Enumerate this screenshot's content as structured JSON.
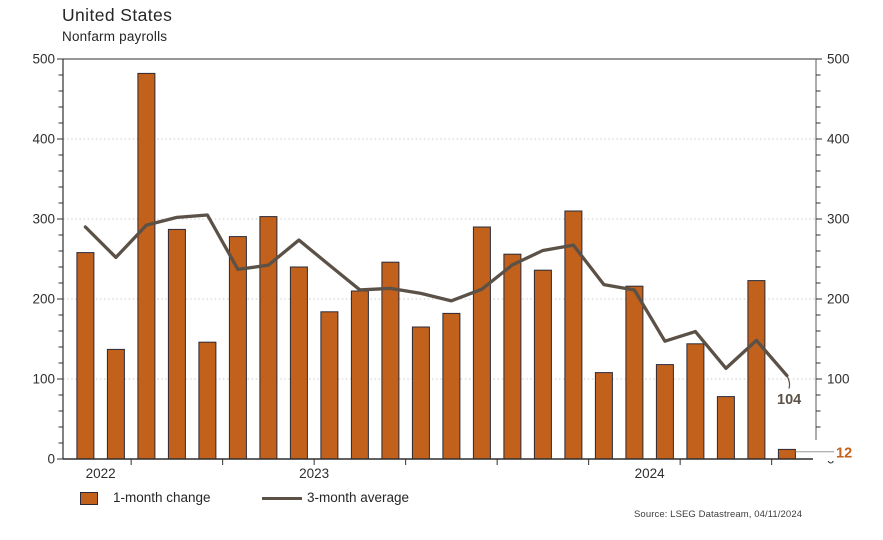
{
  "header": {
    "title": "United States",
    "subtitle": "Nonfarm payrolls"
  },
  "legend": {
    "bar_label": "1-month change",
    "line_label": "3-month average"
  },
  "source_note": "Source: LSEG Datastream, 04/11/2024",
  "colors": {
    "bar": "#C1611B",
    "bar_border": "#2A2A38",
    "line": "#5B5147",
    "grid": "#CBCBCB",
    "frame_dark": "#2F2F2F",
    "frame_light": "#757575",
    "text": "#2E2E2E",
    "leader": "#999999",
    "annotation_bg": "#FFFFFF"
  },
  "chart_data": {
    "type": "bar",
    "title": "United States",
    "subtitle": "Nonfarm payrolls",
    "x": [
      "2022-11",
      "2022-12",
      "2023-01",
      "2023-02",
      "2023-03",
      "2023-04",
      "2023-05",
      "2023-06",
      "2023-07",
      "2023-08",
      "2023-09",
      "2023-10",
      "2023-11",
      "2023-12",
      "2024-01",
      "2024-02",
      "2024-03",
      "2024-04",
      "2024-05",
      "2024-06",
      "2024-07",
      "2024-08",
      "2024-09",
      "2024-10"
    ],
    "series": [
      {
        "name": "1-month change",
        "type": "bar",
        "color": "#C1611B",
        "values": [
          258,
          137,
          482,
          287,
          146,
          278,
          303,
          240,
          184,
          210,
          246,
          165,
          182,
          290,
          256,
          236,
          310,
          108,
          216,
          118,
          144,
          78,
          223,
          12
        ]
      },
      {
        "name": "3-month average",
        "type": "line",
        "color": "#5B5147",
        "values": [
          290,
          252,
          292.3,
          302,
          305,
          237,
          242.3,
          273.7,
          242.3,
          211.3,
          213.3,
          207,
          197.7,
          212.3,
          242.7,
          260.7,
          267.3,
          218,
          211.3,
          147.3,
          159.3,
          113.3,
          148.3,
          104.3
        ]
      }
    ],
    "ylim": [
      0,
      500
    ],
    "y_ticks": [
      0,
      100,
      200,
      300,
      400,
      500
    ],
    "y_minor_step": 20,
    "dual_y_axis": true,
    "grid": "horizontal-dotted",
    "x_tick_interval": "quarterly",
    "year_labels": [
      "2022",
      "2023",
      "2024"
    ],
    "legend_position": "bottom-left",
    "annotations": [
      {
        "series": "line",
        "text": "104",
        "value": 104,
        "color": "#5B5147"
      },
      {
        "series": "bar",
        "text": "12",
        "value": 12,
        "color": "#C1611B"
      }
    ]
  }
}
